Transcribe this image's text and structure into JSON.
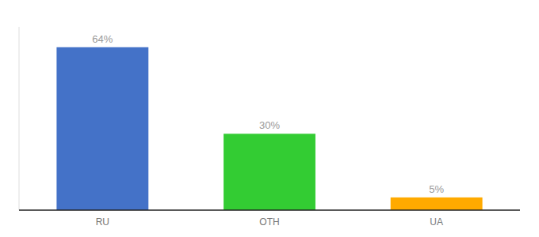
{
  "chart_data": {
    "type": "bar",
    "categories": [
      "RU",
      "OTH",
      "UA"
    ],
    "values": [
      64,
      30,
      5
    ],
    "value_labels": [
      "64%",
      "30%",
      "5%"
    ],
    "colors": [
      "#4472c8",
      "#33cc33",
      "#ffaa00"
    ],
    "ylim": [
      0,
      72
    ],
    "data_labels": true,
    "tick_labels": "x"
  }
}
